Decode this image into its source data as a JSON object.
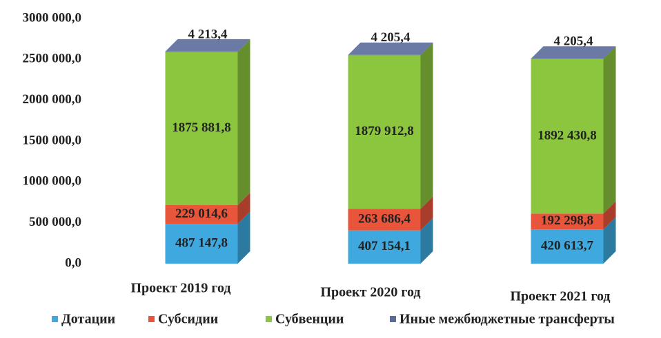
{
  "chart_data": {
    "type": "bar3d_stacked",
    "categories": [
      "Проект 2019 год",
      "Проект 2020 год",
      "Проект 2021 год"
    ],
    "series": [
      {
        "name": "Дотации",
        "color": "#3fa9df",
        "values": [
          487147.8,
          407154.1,
          420613.7
        ],
        "value_labels": [
          "487 147,8",
          "407 154,1",
          "420 613,7"
        ]
      },
      {
        "name": "Субсидии",
        "color": "#e8553a",
        "values": [
          229014.6,
          263686.4,
          192298.8
        ],
        "value_labels": [
          "229 014,6",
          "263 686,4",
          "192 298,8"
        ]
      },
      {
        "name": "Субвенции",
        "color": "#8cc63e",
        "values": [
          1875881.8,
          1879912.8,
          1892430.8
        ],
        "value_labels": [
          "1875 881,8",
          "1879 912,8",
          "1892 430,8"
        ]
      },
      {
        "name": "Иные межбюджетные трансферты",
        "color": "#5a6b9a",
        "values": [
          4213.4,
          4205.4,
          4205.4
        ],
        "value_labels": [
          "4 213,4",
          "4 205,4",
          "4 205,4"
        ]
      }
    ],
    "ylim": [
      0,
      3000000
    ],
    "yticks": [
      {
        "value": 0,
        "label": "0,0"
      },
      {
        "value": 500000,
        "label": "500 000,0"
      },
      {
        "value": 1000000,
        "label": "1000 000,0"
      },
      {
        "value": 1500000,
        "label": "1500 000,0"
      },
      {
        "value": 2000000,
        "label": "2000 000,0"
      },
      {
        "value": 2500000,
        "label": "2500 000,0"
      },
      {
        "value": 3000000,
        "label": "3000 000,0"
      }
    ],
    "legend": "bottom"
  }
}
